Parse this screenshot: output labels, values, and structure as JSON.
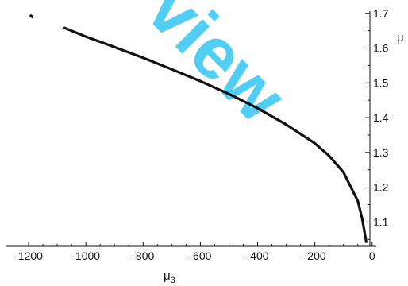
{
  "chart_data": {
    "type": "line",
    "xlabel": "μ",
    "xlabel_sub": "3",
    "ylabel": "μ",
    "xlim": [
      -1250,
      20
    ],
    "ylim": [
      1.03,
      1.72
    ],
    "xticks": [
      "-1200",
      "-1000",
      "-800",
      "-600",
      "-400",
      "-200",
      "0"
    ],
    "xtick_values": [
      -1200,
      -1000,
      -800,
      -600,
      -400,
      -200,
      0
    ],
    "yticks": [
      "1.1",
      "1.2",
      "1.3",
      "1.4",
      "1.5",
      "1.6",
      "1.7"
    ],
    "ytick_values": [
      1.1,
      1.2,
      1.3,
      1.4,
      1.5,
      1.6,
      1.7
    ],
    "ytick_side": "right",
    "series": [
      {
        "color": "#111111",
        "x": [
          -1080,
          -1000,
          -900,
          -800,
          -700,
          -600,
          -500,
          -400,
          -300,
          -200,
          -150,
          -100,
          -50,
          -35,
          -20
        ],
        "y": [
          1.66,
          1.633,
          1.603,
          1.572,
          1.539,
          1.505,
          1.468,
          1.427,
          1.38,
          1.326,
          1.29,
          1.243,
          1.16,
          1.11,
          1.04
        ]
      },
      {
        "color": "#111111",
        "x": [
          -1195,
          -1185
        ],
        "y": [
          1.695,
          1.688
        ]
      }
    ],
    "watermark": "view",
    "watermark_color": "#33c6f2"
  }
}
